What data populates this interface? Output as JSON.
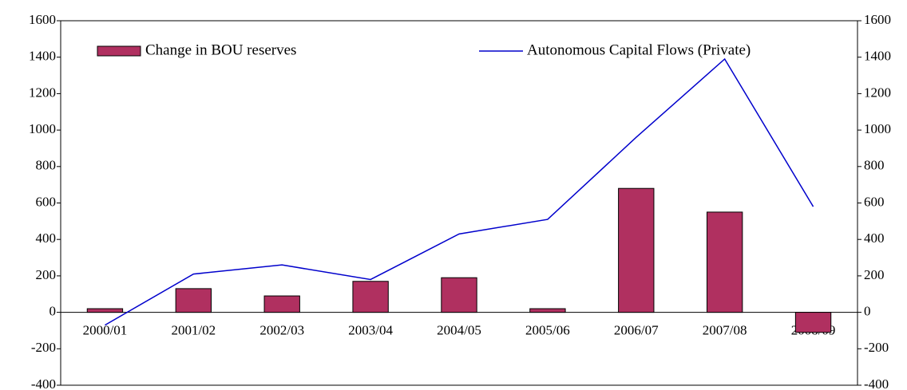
{
  "chart_data": {
    "type": "bar-line",
    "categories": [
      "2000/01",
      "2001/02",
      "2002/03",
      "2003/04",
      "2004/05",
      "2005/06",
      "2006/07",
      "2007/08",
      "2008/09"
    ],
    "series": [
      {
        "name": "Change in BOU reserves",
        "type": "bar",
        "color": "#b03060",
        "values": [
          20,
          130,
          90,
          170,
          190,
          20,
          680,
          550,
          -110
        ]
      },
      {
        "name": "Autonomous Capital Flows (Private)",
        "type": "line",
        "axis": "y2",
        "color": "#0000cc",
        "values": [
          -70,
          210,
          260,
          180,
          430,
          510,
          960,
          1390,
          580
        ]
      }
    ],
    "ylim": [
      -400,
      1600
    ],
    "yticks": [
      -400,
      -200,
      0,
      200,
      400,
      600,
      800,
      1000,
      1200,
      1400,
      1600
    ],
    "y2lim": [
      -400,
      1600
    ],
    "y2ticks": [
      -400,
      -200,
      0,
      200,
      400,
      600,
      800,
      1000,
      1200,
      1400,
      1600
    ]
  }
}
